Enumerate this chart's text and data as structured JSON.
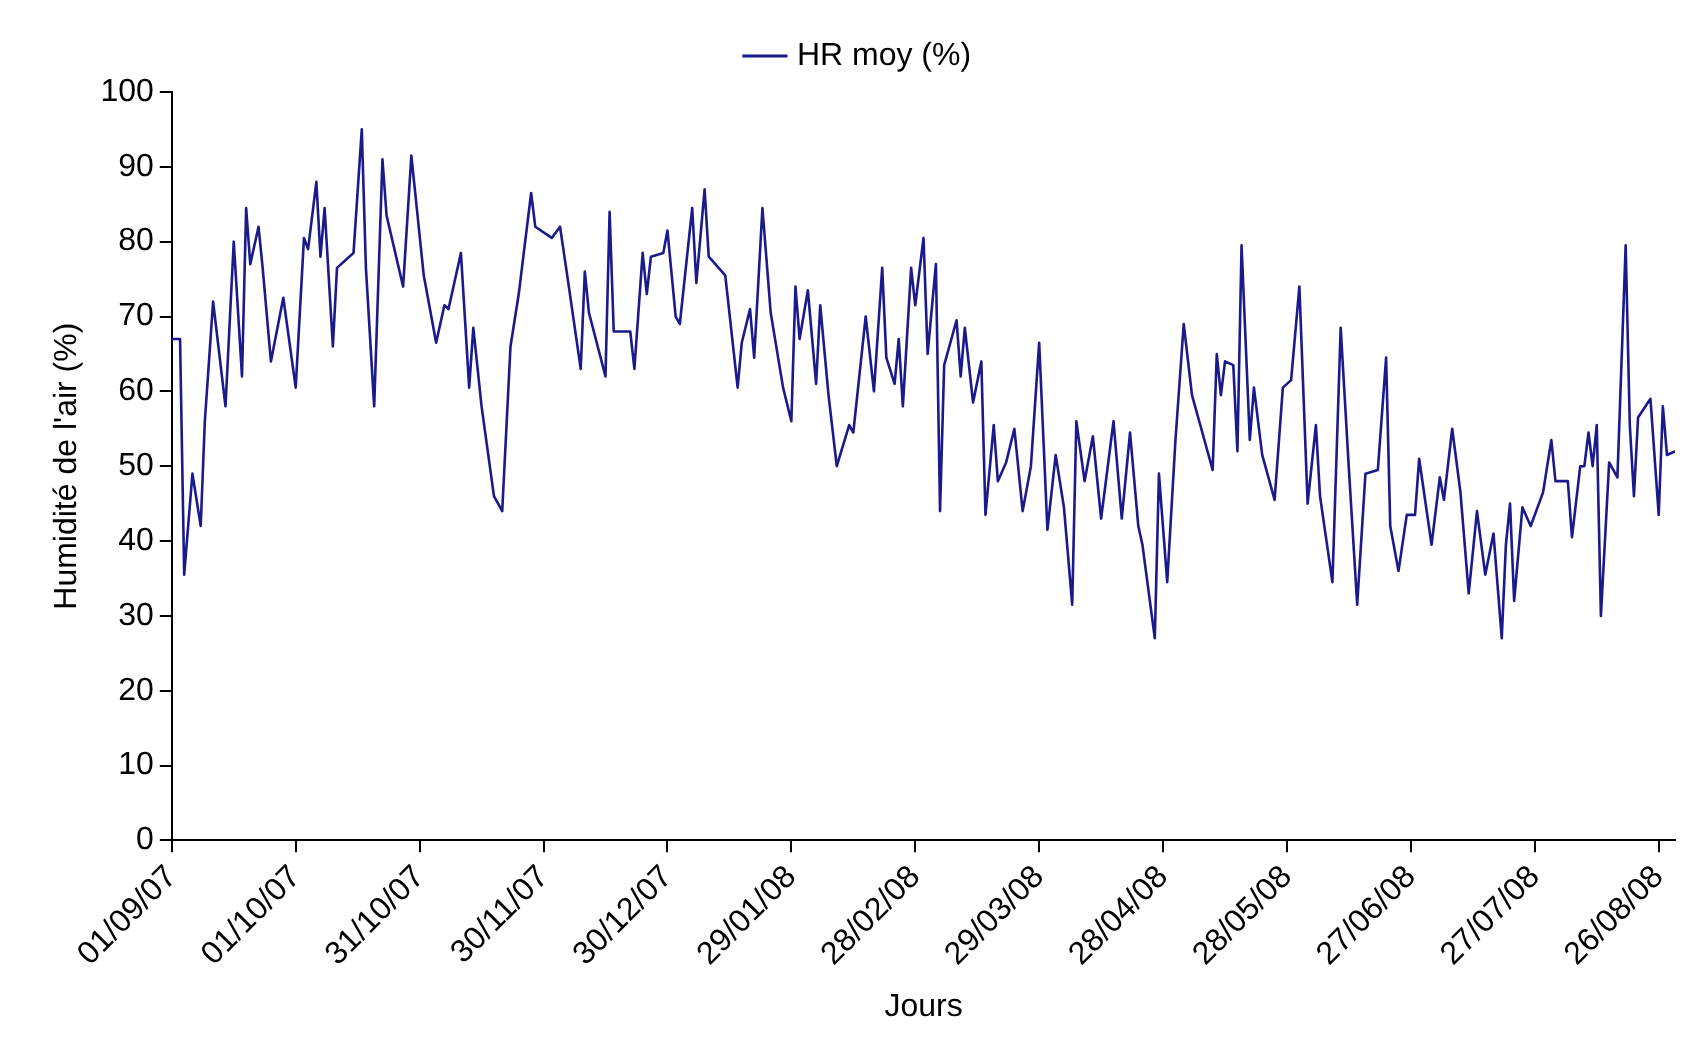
{
  "chart_data": {
    "type": "line",
    "xlabel": "Jours",
    "ylabel": "Humidité de l'air (%)",
    "legend": "top",
    "grid": false,
    "marker": "none",
    "line_style": "solid",
    "xlim": [
      "2007-09-01",
      "2008-08-30"
    ],
    "xticks": [
      {
        "value": "2007-09-01",
        "label": "01/09/07"
      },
      {
        "value": "2007-10-01",
        "label": "01/10/07"
      },
      {
        "value": "2007-10-31",
        "label": "31/10/07"
      },
      {
        "value": "2007-11-30",
        "label": "30/11/07"
      },
      {
        "value": "2007-12-30",
        "label": "30/12/07"
      },
      {
        "value": "2008-01-29",
        "label": "29/01/08"
      },
      {
        "value": "2008-02-28",
        "label": "28/02/08"
      },
      {
        "value": "2008-03-29",
        "label": "29/03/08"
      },
      {
        "value": "2008-04-28",
        "label": "28/04/08"
      },
      {
        "value": "2008-05-28",
        "label": "28/05/08"
      },
      {
        "value": "2008-06-27",
        "label": "27/06/08"
      },
      {
        "value": "2008-07-27",
        "label": "27/07/08"
      },
      {
        "value": "2008-08-26",
        "label": "26/08/08"
      }
    ],
    "ylim": [
      0,
      100
    ],
    "yticks": [
      0,
      10,
      20,
      30,
      40,
      50,
      60,
      70,
      80,
      90,
      100
    ],
    "x": [
      "2007-09-01",
      "2007-09-03",
      "2007-09-04",
      "2007-09-06",
      "2007-09-08",
      "2007-09-09",
      "2007-09-11",
      "2007-09-14",
      "2007-09-16",
      "2007-09-18",
      "2007-09-19",
      "2007-09-20",
      "2007-09-22",
      "2007-09-23",
      "2007-09-25",
      "2007-09-28",
      "2007-10-01",
      "2007-10-03",
      "2007-10-04",
      "2007-10-06",
      "2007-10-07",
      "2007-10-08",
      "2007-10-10",
      "2007-10-11",
      "2007-10-15",
      "2007-10-17",
      "2007-10-18",
      "2007-10-20",
      "2007-10-22",
      "2007-10-23",
      "2007-10-27",
      "2007-10-29",
      "2007-11-01",
      "2007-11-04",
      "2007-11-06",
      "2007-11-07",
      "2007-11-10",
      "2007-11-12",
      "2007-11-13",
      "2007-11-15",
      "2007-11-18",
      "2007-11-20",
      "2007-11-22",
      "2007-11-24",
      "2007-11-27",
      "2007-11-28",
      "2007-12-02",
      "2007-12-04",
      "2007-12-06",
      "2007-12-09",
      "2007-12-10",
      "2007-12-11",
      "2007-12-15",
      "2007-12-16",
      "2007-12-17",
      "2007-12-21",
      "2007-12-22",
      "2007-12-24",
      "2007-12-25",
      "2007-12-26",
      "2007-12-29",
      "2007-12-30",
      "2008-01-01",
      "2008-01-02",
      "2008-01-05",
      "2008-01-06",
      "2008-01-08",
      "2008-01-09",
      "2008-01-13",
      "2008-01-16",
      "2008-01-17",
      "2008-01-19",
      "2008-01-20",
      "2008-01-22",
      "2008-01-24",
      "2008-01-27",
      "2008-01-29",
      "2008-01-30",
      "2008-01-31",
      "2008-02-02",
      "2008-02-04",
      "2008-02-05",
      "2008-02-07",
      "2008-02-09",
      "2008-02-12",
      "2008-02-13",
      "2008-02-16",
      "2008-02-18",
      "2008-02-20",
      "2008-02-21",
      "2008-02-23",
      "2008-02-24",
      "2008-02-25",
      "2008-02-27",
      "2008-02-28",
      "2008-03-01",
      "2008-03-02",
      "2008-03-04",
      "2008-03-05",
      "2008-03-06",
      "2008-03-09",
      "2008-03-10",
      "2008-03-11",
      "2008-03-13",
      "2008-03-15",
      "2008-03-16",
      "2008-03-18",
      "2008-03-19",
      "2008-03-21",
      "2008-03-23",
      "2008-03-25",
      "2008-03-27",
      "2008-03-29",
      "2008-03-31",
      "2008-04-02",
      "2008-04-04",
      "2008-04-06",
      "2008-04-07",
      "2008-04-09",
      "2008-04-11",
      "2008-04-13",
      "2008-04-16",
      "2008-04-18",
      "2008-04-20",
      "2008-04-22",
      "2008-04-23",
      "2008-04-26",
      "2008-04-27",
      "2008-04-29",
      "2008-05-01",
      "2008-05-03",
      "2008-05-05",
      "2008-05-07",
      "2008-05-10",
      "2008-05-11",
      "2008-05-12",
      "2008-05-13",
      "2008-05-15",
      "2008-05-16",
      "2008-05-17",
      "2008-05-19",
      "2008-05-20",
      "2008-05-22",
      "2008-05-25",
      "2008-05-27",
      "2008-05-29",
      "2008-05-31",
      "2008-06-02",
      "2008-06-04",
      "2008-06-05",
      "2008-06-08",
      "2008-06-10",
      "2008-06-12",
      "2008-06-14",
      "2008-06-16",
      "2008-06-19",
      "2008-06-21",
      "2008-06-22",
      "2008-06-24",
      "2008-06-26",
      "2008-06-28",
      "2008-06-29",
      "2008-07-02",
      "2008-07-04",
      "2008-07-05",
      "2008-07-07",
      "2008-07-09",
      "2008-07-11",
      "2008-07-13",
      "2008-07-15",
      "2008-07-17",
      "2008-07-19",
      "2008-07-20",
      "2008-07-21",
      "2008-07-22",
      "2008-07-24",
      "2008-07-26",
      "2008-07-29",
      "2008-07-31",
      "2008-08-01",
      "2008-08-04",
      "2008-08-05",
      "2008-08-07",
      "2008-08-08",
      "2008-08-09",
      "2008-08-10",
      "2008-08-11",
      "2008-08-12",
      "2008-08-14",
      "2008-08-16",
      "2008-08-18",
      "2008-08-19",
      "2008-08-20",
      "2008-08-21",
      "2008-08-24",
      "2008-08-26",
      "2008-08-27",
      "2008-08-28",
      "2008-08-30"
    ],
    "series": [
      {
        "name": "HR moy (%)",
        "color": "#1a1a8c",
        "values": [
          67,
          67,
          35.5,
          49,
          42,
          56,
          72,
          58,
          80,
          62,
          84.5,
          77,
          82,
          76.5,
          64,
          72.5,
          60.5,
          80.5,
          79,
          88,
          78,
          84.5,
          66,
          76.5,
          78.5,
          95,
          76.5,
          58,
          91,
          83.5,
          74,
          91.5,
          75.5,
          66.5,
          71.5,
          71,
          78.5,
          60.5,
          68.5,
          58,
          46,
          44,
          66,
          73,
          86.5,
          82,
          80.5,
          82,
          74.5,
          63,
          76,
          70.5,
          62,
          84,
          68,
          68,
          63,
          78.5,
          73,
          78,
          78.5,
          81.5,
          70,
          69,
          84.5,
          74.5,
          87,
          78,
          75.5,
          60.5,
          66.5,
          71,
          64.5,
          84.5,
          70.5,
          60.5,
          56,
          74,
          67,
          73.5,
          61,
          71.5,
          59.5,
          50,
          55.5,
          54.5,
          70,
          60,
          76.5,
          64.5,
          61,
          67,
          58,
          76.5,
          71.5,
          80.5,
          65,
          77,
          44,
          63.5,
          69.5,
          62,
          68.5,
          58.5,
          64,
          43.5,
          55.5,
          48,
          50.5,
          55,
          44,
          50,
          66.5,
          41.5,
          51.5,
          44.5,
          31.5,
          56,
          48,
          54,
          43,
          56,
          43,
          54.5,
          42,
          39.5,
          27,
          49,
          34.5,
          53.5,
          69,
          59.5,
          55.5,
          49.5,
          65,
          59.5,
          64,
          63.5,
          52,
          79.5,
          53.5,
          60.5,
          51.5,
          45.5,
          60.5,
          61.5,
          74,
          45,
          55.5,
          46,
          34.5,
          68.5,
          49.5,
          31.5,
          49,
          49.5,
          64.5,
          42,
          36,
          43.5,
          43.5,
          51,
          39.5,
          48.5,
          45.5,
          55,
          46.5,
          33,
          44,
          35.5,
          41,
          27,
          39.5,
          45,
          32,
          44.5,
          42,
          46.5,
          53.5,
          48,
          48,
          40.5,
          50,
          50,
          54.5,
          50,
          55.5,
          30,
          50.5,
          48.5,
          79.5,
          55.5,
          46,
          56.5,
          59,
          43.5,
          58,
          51.5,
          52
        ]
      }
    ]
  }
}
